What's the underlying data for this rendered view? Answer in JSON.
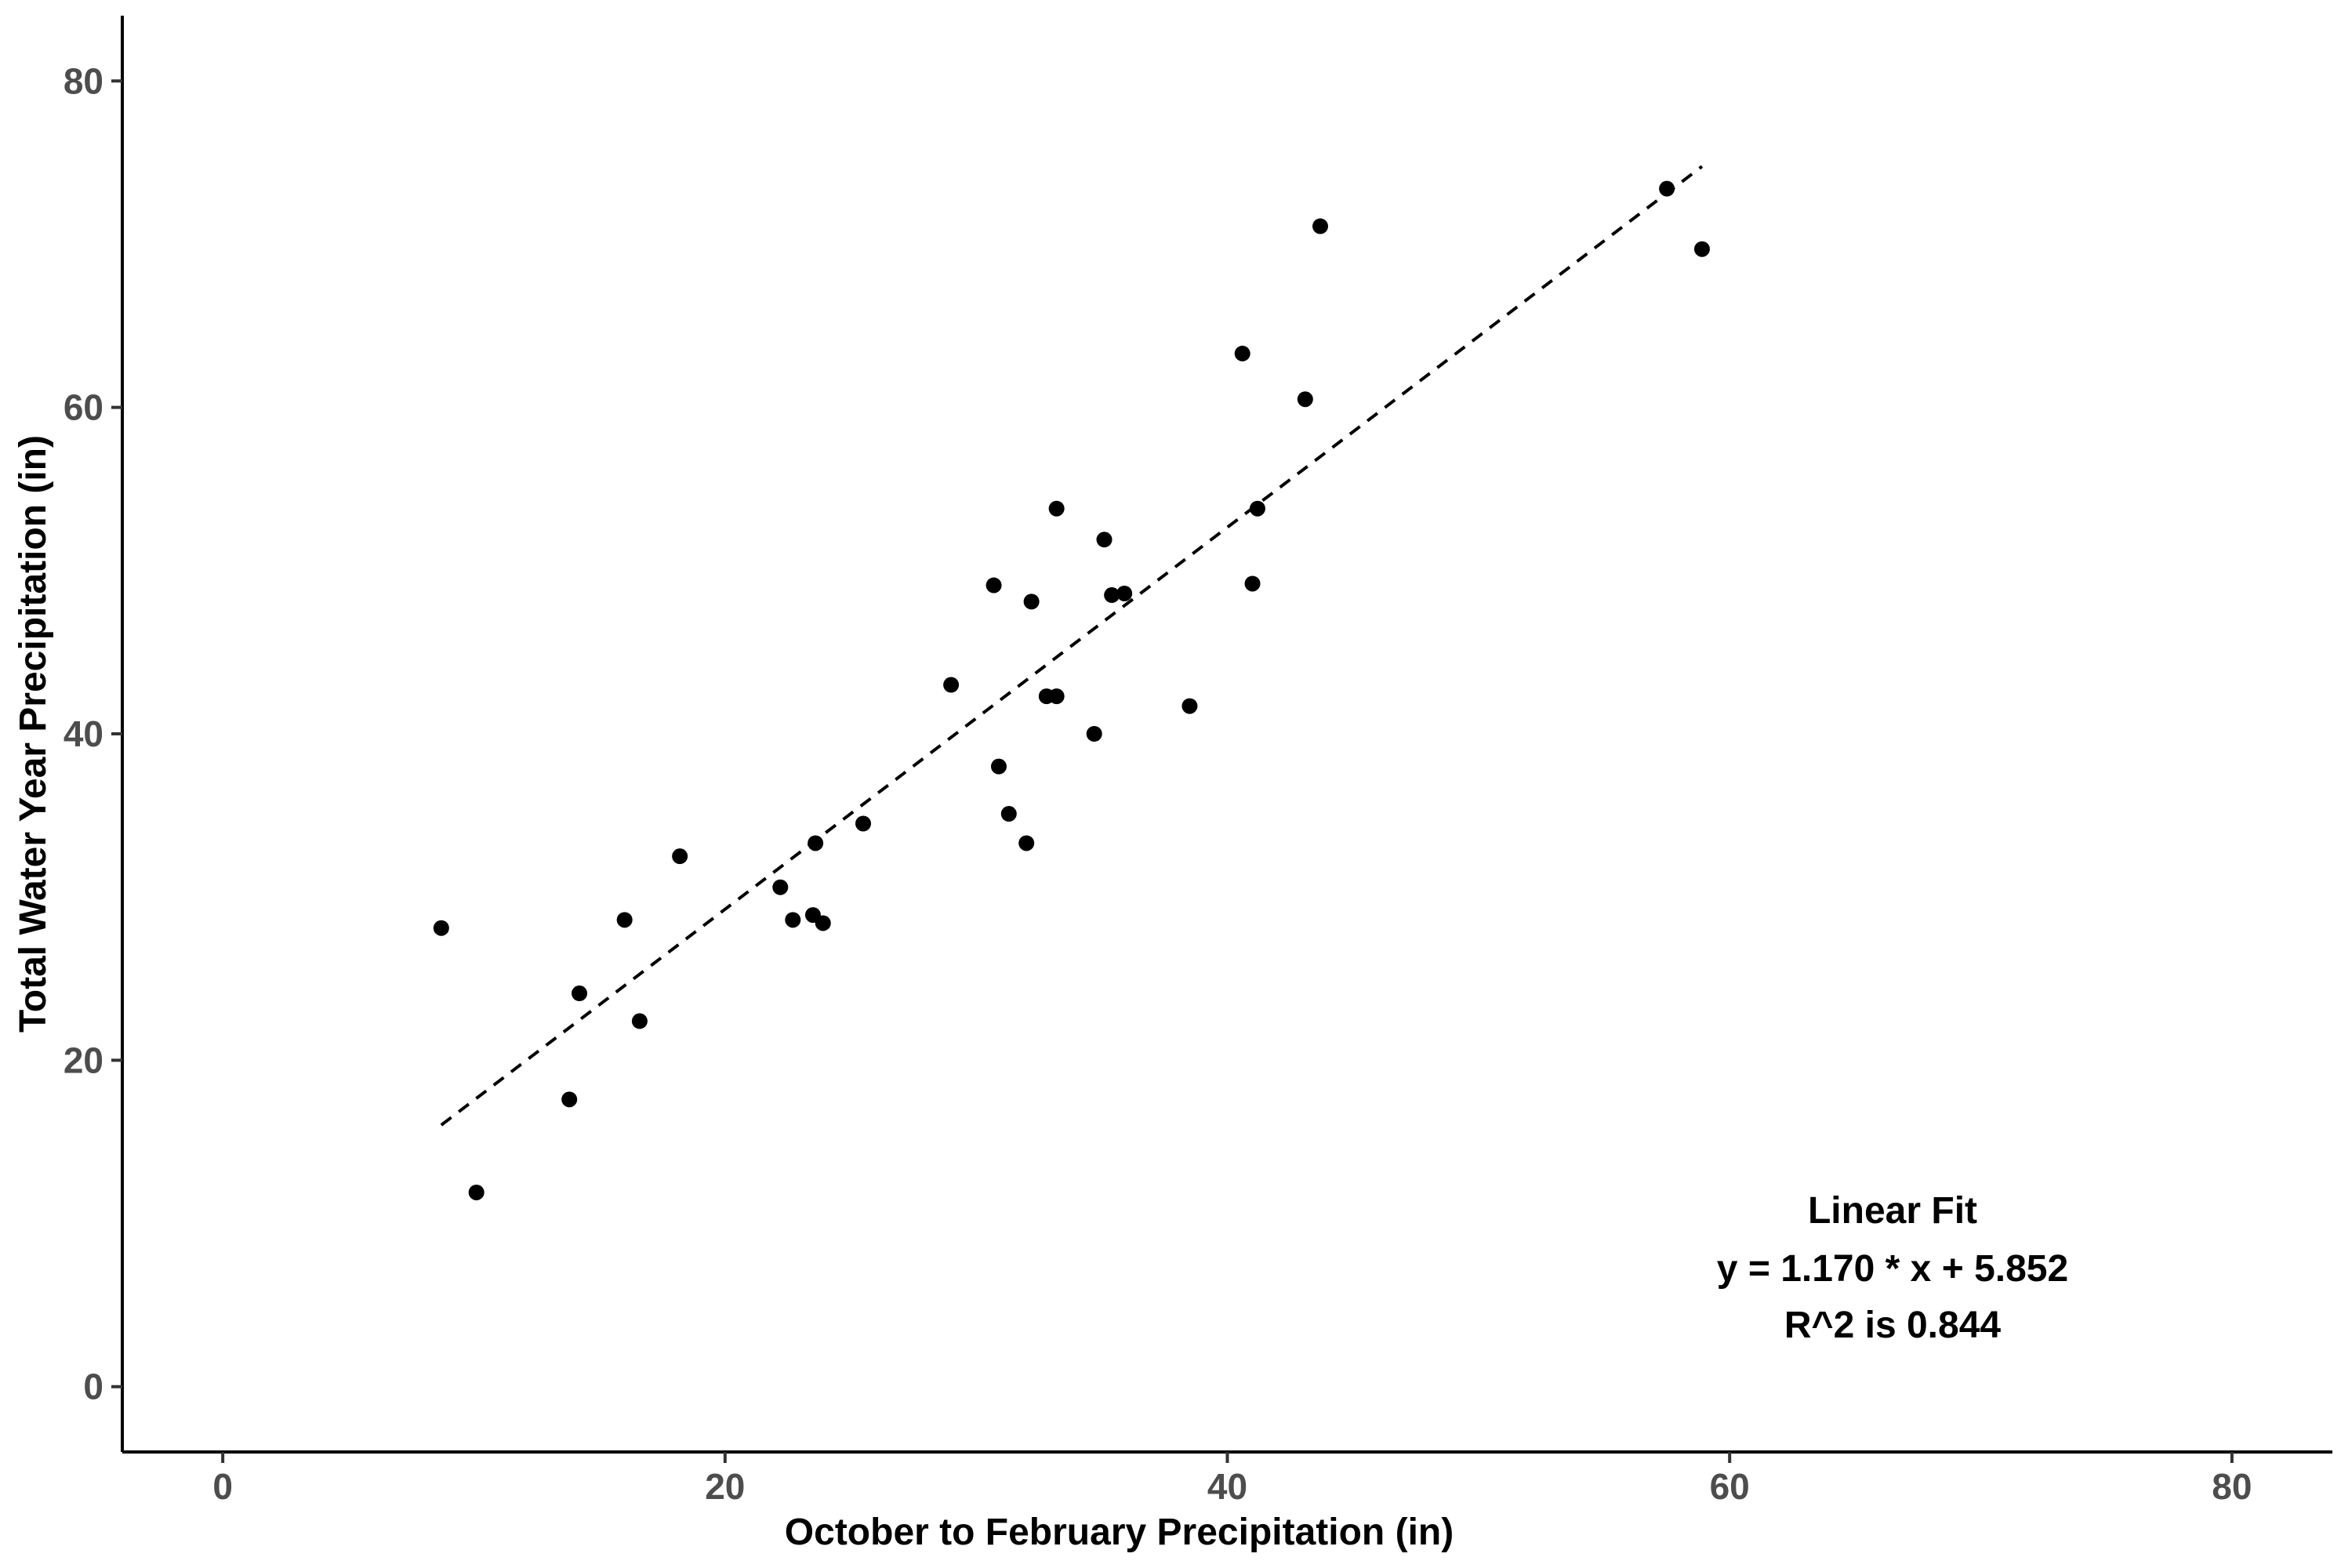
{
  "chart_data": {
    "type": "scatter",
    "xlabel": "October to February Precipitation (in)",
    "ylabel": "Total Water Year Precipitation (in)",
    "xlim": [
      -4,
      84
    ],
    "ylim": [
      -4,
      84
    ],
    "xticks": [
      "0",
      "20",
      "40",
      "60",
      "80"
    ],
    "yticks": [
      "0",
      "20",
      "40",
      "60",
      "80"
    ],
    "grid": false,
    "colors": {
      "points": "#000000",
      "fit_line": "#000000",
      "tick_label": "#4d4d4d"
    },
    "points": [
      {
        "x": 8.7,
        "y": 28.1
      },
      {
        "x": 10.1,
        "y": 11.9
      },
      {
        "x": 13.8,
        "y": 17.6
      },
      {
        "x": 14.2,
        "y": 24.1
      },
      {
        "x": 16.0,
        "y": 28.6
      },
      {
        "x": 16.6,
        "y": 22.4
      },
      {
        "x": 18.2,
        "y": 32.5
      },
      {
        "x": 22.2,
        "y": 30.6
      },
      {
        "x": 22.7,
        "y": 28.6
      },
      {
        "x": 23.5,
        "y": 28.9
      },
      {
        "x": 23.6,
        "y": 33.3
      },
      {
        "x": 23.9,
        "y": 28.4
      },
      {
        "x": 25.5,
        "y": 34.5
      },
      {
        "x": 29.0,
        "y": 43.0
      },
      {
        "x": 30.7,
        "y": 49.1
      },
      {
        "x": 30.9,
        "y": 38.0
      },
      {
        "x": 31.3,
        "y": 35.1
      },
      {
        "x": 32.0,
        "y": 33.3
      },
      {
        "x": 32.2,
        "y": 48.1
      },
      {
        "x": 32.8,
        "y": 42.3
      },
      {
        "x": 33.2,
        "y": 42.3
      },
      {
        "x": 33.2,
        "y": 53.8
      },
      {
        "x": 34.7,
        "y": 40.0
      },
      {
        "x": 35.1,
        "y": 51.9
      },
      {
        "x": 35.4,
        "y": 48.5
      },
      {
        "x": 35.9,
        "y": 48.6
      },
      {
        "x": 38.5,
        "y": 41.7
      },
      {
        "x": 40.6,
        "y": 63.3
      },
      {
        "x": 41.0,
        "y": 49.2
      },
      {
        "x": 41.2,
        "y": 53.8
      },
      {
        "x": 43.1,
        "y": 60.5
      },
      {
        "x": 43.7,
        "y": 71.1
      },
      {
        "x": 57.5,
        "y": 73.4
      },
      {
        "x": 58.9,
        "y": 69.7
      }
    ],
    "fit_line": {
      "style": "dashed",
      "x": [
        8.7,
        58.9
      ],
      "slope": 1.17,
      "intercept": 5.852
    },
    "annotation": [
      "Linear Fit",
      "y = 1.170 * x + 5.852",
      "R^2 is 0.844"
    ]
  }
}
